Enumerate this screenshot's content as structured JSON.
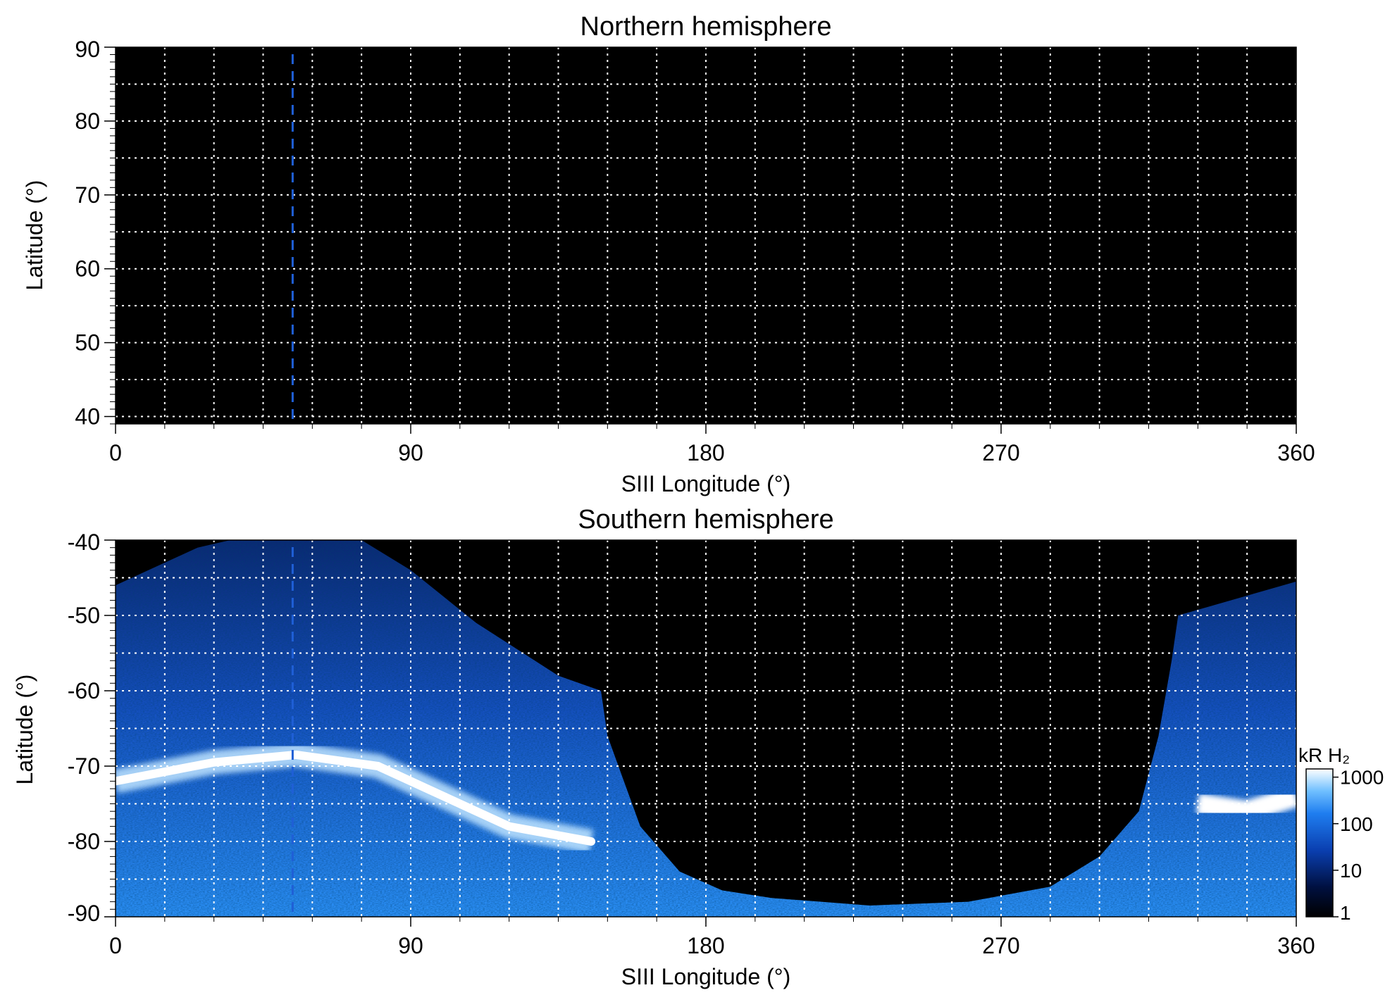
{
  "colors": {
    "background": "#ffffff",
    "plot_background": "#000000",
    "grid": "#ffffff",
    "marker_line": "#1f5fd6",
    "colormap": [
      "#000000",
      "#001040",
      "#0a3fb0",
      "#1f7ef0",
      "#6fbfff",
      "#ffffff"
    ]
  },
  "chart_data": [
    {
      "type": "heatmap",
      "title": "Northern hemisphere",
      "xlabel": "SIII Longitude (°)",
      "ylabel": "Latitude (°)",
      "xlim": [
        0,
        360
      ],
      "ylim": [
        39,
        90
      ],
      "xticks": [
        "0",
        "90",
        "180",
        "270",
        "360"
      ],
      "yticks": [
        "90",
        "80",
        "70",
        "60",
        "50",
        "40"
      ],
      "grid": true,
      "grid_step_lon": 15,
      "grid_step_lat": 5,
      "dashed_marker_longitude": 54,
      "emission": "none"
    },
    {
      "type": "heatmap",
      "title": "Southern hemisphere",
      "xlabel": "SIII Longitude (°)",
      "ylabel": "Latitude (°)",
      "xlim": [
        0,
        360
      ],
      "ylim": [
        -90,
        -40
      ],
      "xticks": [
        "0",
        "90",
        "180",
        "270",
        "360"
      ],
      "yticks": [
        "-40",
        "-50",
        "-60",
        "-70",
        "-80",
        "-90"
      ],
      "grid": true,
      "grid_step_lon": 15,
      "grid_step_lat": 5,
      "dashed_marker_longitude": 54,
      "main_oval": [
        [
          0,
          -72
        ],
        [
          30,
          -69.5
        ],
        [
          55,
          -68.5
        ],
        [
          80,
          -70
        ],
        [
          100,
          -74
        ],
        [
          120,
          -78
        ],
        [
          145,
          -80
        ],
        [
          330,
          -75
        ],
        [
          345,
          -76
        ],
        [
          360,
          -74
        ]
      ],
      "colorbar": {
        "label": "kR H₂",
        "ticks": [
          "1000",
          "100",
          "10",
          "1"
        ],
        "scale": "log",
        "range": [
          1,
          1500
        ]
      }
    }
  ]
}
